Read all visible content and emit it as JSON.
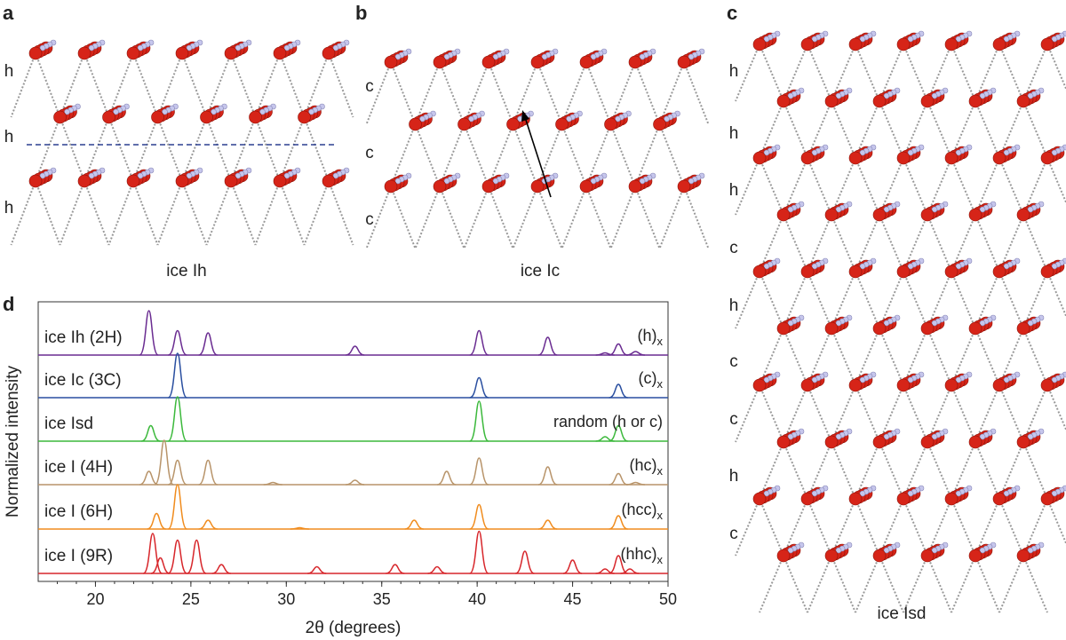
{
  "panels": [
    {
      "label": "a",
      "layers": [
        "h",
        "h",
        "h"
      ],
      "caption": "ice Ih"
    },
    {
      "label": "b",
      "layers": [
        "c",
        "c",
        "c"
      ],
      "caption": "ice Ic"
    },
    {
      "label": "c",
      "layers": [
        "h",
        "h",
        "h",
        "c",
        "h",
        "c",
        "c",
        "h",
        "c"
      ],
      "caption": "ice Isd"
    }
  ],
  "chart_data": {
    "type": "stacked-peaks",
    "panel_label": "d",
    "x_label": "2θ (degrees)",
    "y_label": "Normalized intensity",
    "xlim": [
      17,
      50
    ],
    "xticks": [
      20,
      25,
      30,
      35,
      40,
      45,
      50
    ],
    "series": [
      {
        "name": "ice Ih (2H)",
        "stacking": "(h)",
        "stacking_subscript": "x",
        "color": "#6a2c91",
        "x": [
          22.8,
          24.3,
          25.9,
          33.6,
          40.1,
          43.7,
          46.7,
          47.4,
          48.3
        ],
        "values": [
          1.0,
          0.55,
          0.5,
          0.2,
          0.55,
          0.4,
          0.05,
          0.25,
          0.08
        ]
      },
      {
        "name": "ice Ic (3C)",
        "stacking": "(c)",
        "stacking_subscript": "x",
        "color": "#2a4fa0",
        "x": [
          24.3,
          40.1,
          47.4
        ],
        "values": [
          1.0,
          0.45,
          0.3
        ]
      },
      {
        "name": "ice Isd",
        "stacking": "random (h or c)",
        "color": "#3cb93c",
        "x": [
          22.9,
          24.3,
          40.1,
          46.7,
          47.4
        ],
        "values": [
          0.35,
          1.0,
          0.9,
          0.1,
          0.35
        ]
      },
      {
        "name": "ice I (4H)",
        "stacking": "(hc)",
        "stacking_subscript": "x",
        "color": "#b8946a",
        "x": [
          22.8,
          23.6,
          24.3,
          25.9,
          29.3,
          33.6,
          38.4,
          40.1,
          43.7,
          47.4,
          48.3
        ],
        "values": [
          0.3,
          1.0,
          0.55,
          0.55,
          0.05,
          0.1,
          0.3,
          0.6,
          0.4,
          0.25,
          0.05
        ]
      },
      {
        "name": "ice I (6H)",
        "stacking": "(hcc)",
        "stacking_subscript": "x",
        "color": "#f08c1e",
        "x": [
          23.2,
          24.3,
          25.9,
          30.7,
          36.7,
          40.1,
          43.7,
          47.4
        ],
        "values": [
          0.35,
          1.0,
          0.2,
          0.03,
          0.2,
          0.55,
          0.2,
          0.3
        ]
      },
      {
        "name": "ice I (9R)",
        "stacking": "(hhc)",
        "stacking_subscript": "x",
        "color": "#d7262b",
        "x": [
          23.0,
          23.4,
          24.3,
          25.3,
          26.6,
          31.6,
          35.7,
          37.9,
          40.1,
          42.5,
          45.0,
          46.7,
          47.4,
          48.0
        ],
        "values": [
          0.9,
          0.35,
          0.75,
          0.75,
          0.2,
          0.15,
          0.2,
          0.15,
          0.95,
          0.5,
          0.3,
          0.1,
          0.4,
          0.1
        ]
      }
    ]
  }
}
